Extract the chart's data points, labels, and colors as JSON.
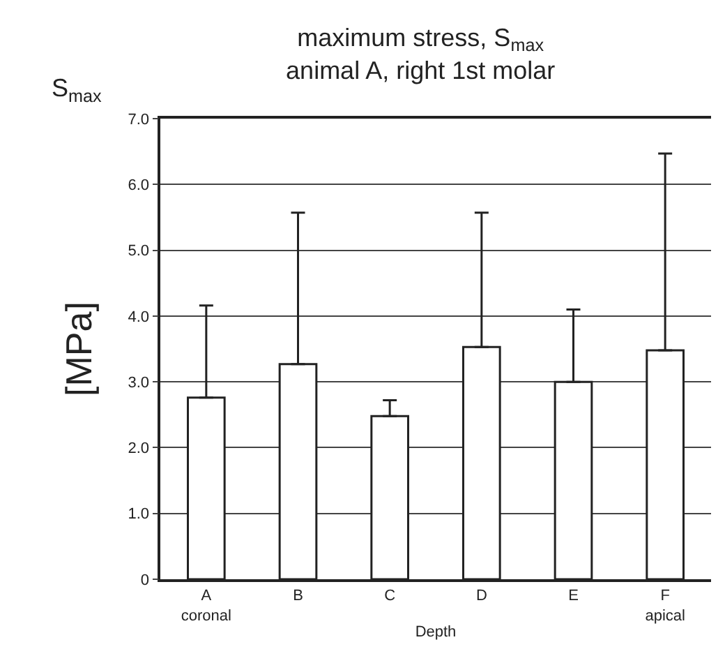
{
  "chart_data": {
    "type": "bar",
    "title": "maximum stress, S$_{max}$\nanimal A, right 1st molar",
    "categories": [
      "A\ncoronal",
      "B",
      "C",
      "D",
      "E",
      "F\napical"
    ],
    "values": [
      2.76,
      3.27,
      2.48,
      3.53,
      3.0,
      3.48
    ],
    "errors": [
      [
        2.76,
        4.16
      ],
      [
        3.27,
        5.57
      ],
      [
        2.48,
        2.72
      ],
      [
        3.53,
        5.57
      ],
      [
        3.0,
        4.1
      ],
      [
        3.48,
        6.47
      ]
    ],
    "color": "#ffffff",
    "xlabel": "Depth",
    "ylabel": "[MPa]",
    "annotations": [
      "S$_{max}$"
    ],
    "ylim": [
      0,
      7
    ],
    "yticks": [
      0,
      {
        "value": 1,
        "label": "1.0"
      },
      {
        "value": 2,
        "label": "2.0"
      },
      {
        "value": 3,
        "label": "3.0"
      },
      {
        "value": 4,
        "label": "4.0"
      },
      {
        "value": 5,
        "label": "5.0"
      },
      {
        "value": 6,
        "label": "6.0"
      },
      {
        "value": 7,
        "label": "7.0"
      }
    ],
    "grid": "y",
    "legend": false
  }
}
